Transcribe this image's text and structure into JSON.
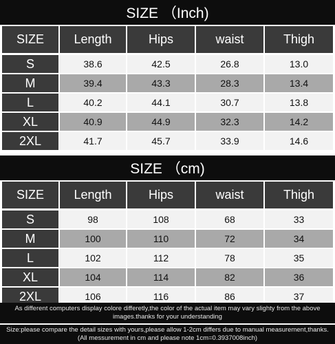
{
  "tables": [
    {
      "title": "SIZE （Inch)",
      "header": [
        "SIZE",
        "Length",
        "Hips",
        "waist",
        "Thigh"
      ],
      "rows": [
        [
          "S",
          "38.6",
          "42.5",
          "26.8",
          "13.0"
        ],
        [
          "M",
          "39.4",
          "43.3",
          "28.3",
          "13.4"
        ],
        [
          "L",
          "40.2",
          "44.1",
          "30.7",
          "13.8"
        ],
        [
          "XL",
          "40.9",
          "44.9",
          "32.3",
          "14.2"
        ],
        [
          "2XL",
          "41.7",
          "45.7",
          "33.9",
          "14.6"
        ]
      ]
    },
    {
      "title": "SIZE （cm)",
      "header": [
        "SIZE",
        "Length",
        "Hips",
        "waist",
        "Thigh"
      ],
      "rows": [
        [
          "S",
          "98",
          "108",
          "68",
          "33"
        ],
        [
          "M",
          "100",
          "110",
          "72",
          "34"
        ],
        [
          "L",
          "102",
          "112",
          "78",
          "35"
        ],
        [
          "XL",
          "104",
          "114",
          "82",
          "36"
        ],
        [
          "2XL",
          "106",
          "116",
          "86",
          "37"
        ]
      ]
    }
  ],
  "notes": [
    "As different computers display colore differetly,the color of the actual item may vary slighty from the above images.thanks for your understanding",
    "Size:please compare the detail sizes with yours,please allow 1-2cm differs due to manual measurement,thanks.(All messurement in cm and please note 1cm=0.3937008inch)"
  ]
}
